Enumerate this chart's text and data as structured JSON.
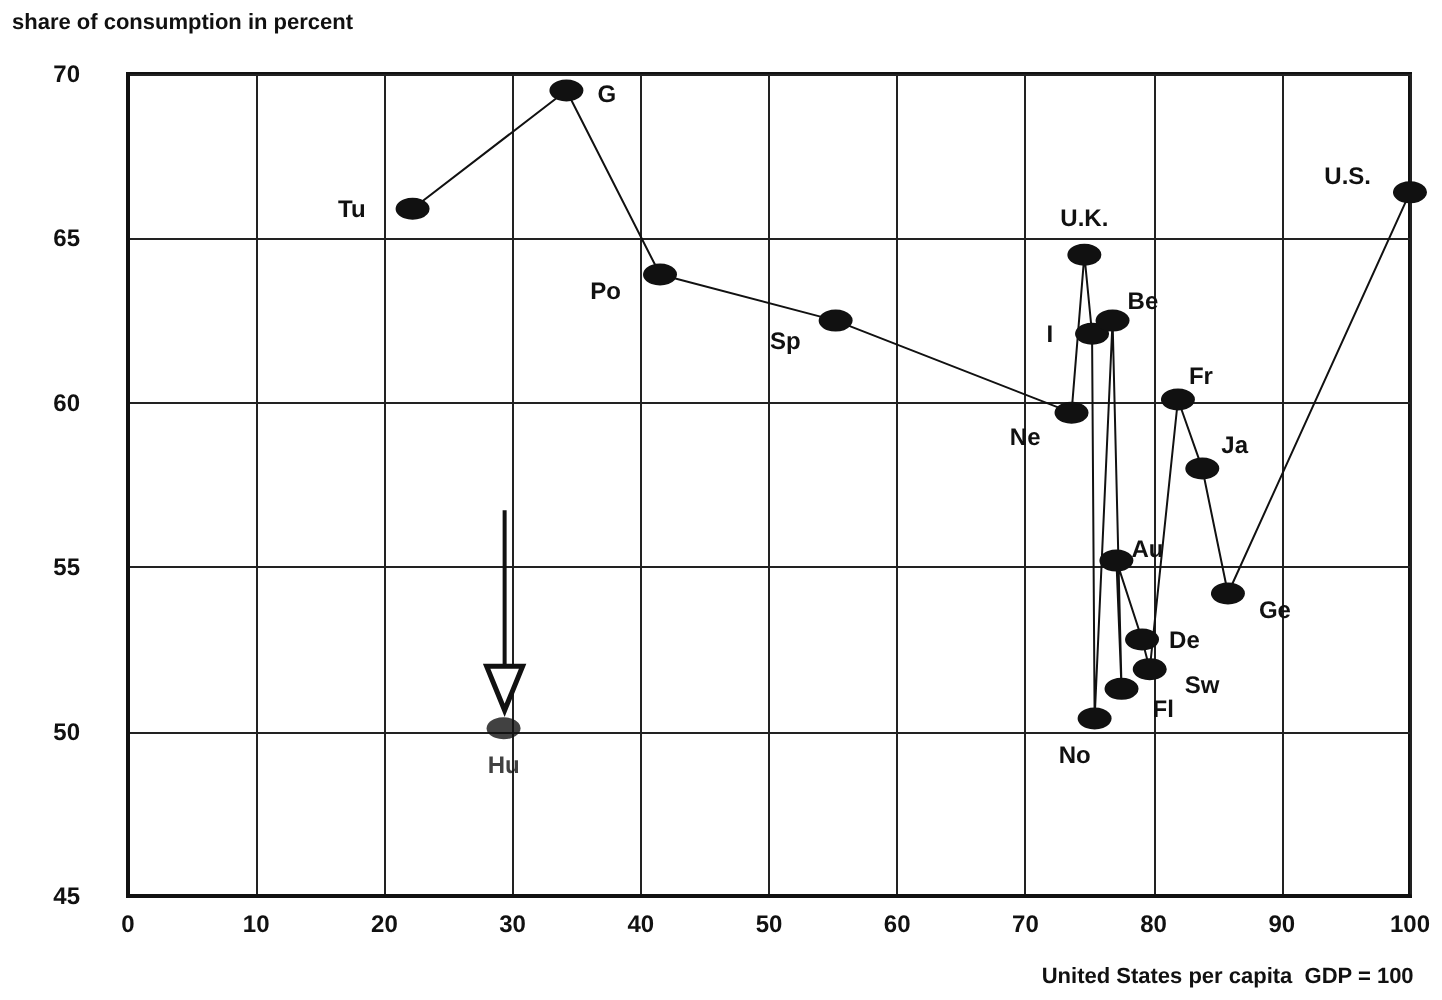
{
  "chart_data": {
    "type": "line",
    "ylabel": "share of consumption in percent",
    "xlabel": "United States per capita  GDP = 100",
    "series": [
      {
        "color": "#111111",
        "x": [
          22.2,
          34.2,
          41.5,
          55.2,
          73.6,
          74.6,
          75.2,
          75.4,
          76.8,
          77.5,
          77.1,
          79.1,
          79.7,
          81.9,
          83.8,
          85.8,
          100
        ],
        "values": [
          65.9,
          69.5,
          63.9,
          62.5,
          59.7,
          64.5,
          62.1,
          50.4,
          62.5,
          51.3,
          55.2,
          52.8,
          51.9,
          60.1,
          58.0,
          54.2,
          66.4
        ]
      },
      {
        "type": "scatter",
        "color": "#111111",
        "x": [
          29.3
        ],
        "values": [
          50.1
        ]
      }
    ],
    "annotations": [
      {
        "text": "Tu",
        "x": 22.2,
        "y": 65.9
      },
      {
        "text": "G",
        "x": 34.2,
        "y": 69.5
      },
      {
        "text": "Po",
        "x": 41.5,
        "y": 63.9
      },
      {
        "text": "Sp",
        "x": 55.2,
        "y": 62.5
      },
      {
        "text": "Ne",
        "x": 73.6,
        "y": 59.7
      },
      {
        "text": "U.K.",
        "x": 74.6,
        "y": 64.5
      },
      {
        "text": "I",
        "x": 75.2,
        "y": 62.1
      },
      {
        "text": "No",
        "x": 75.4,
        "y": 50.4
      },
      {
        "text": "Be",
        "x": 76.8,
        "y": 62.5
      },
      {
        "text": "Fl",
        "x": 77.5,
        "y": 51.3
      },
      {
        "text": "Au",
        "x": 77.1,
        "y": 55.2
      },
      {
        "text": "De",
        "x": 79.1,
        "y": 52.8
      },
      {
        "text": "Sw",
        "x": 79.7,
        "y": 51.9
      },
      {
        "text": "Fr",
        "x": 81.9,
        "y": 60.1
      },
      {
        "text": "Ja",
        "x": 83.8,
        "y": 58.0
      },
      {
        "text": "Ge",
        "x": 85.8,
        "y": 54.2
      },
      {
        "text": "U.S.",
        "x": 100,
        "y": 66.4
      },
      {
        "text": "Hu",
        "x": 29.3,
        "y": 50.1
      }
    ],
    "xlim": [
      0,
      100
    ],
    "xticks": [
      0,
      10,
      20,
      30,
      40,
      50,
      60,
      70,
      80,
      90,
      100
    ],
    "ylim": [
      45,
      70
    ],
    "yticks": [
      45,
      50,
      55,
      60,
      65,
      70
    ],
    "grid": true,
    "marker": "circle",
    "line_style": "solid"
  }
}
